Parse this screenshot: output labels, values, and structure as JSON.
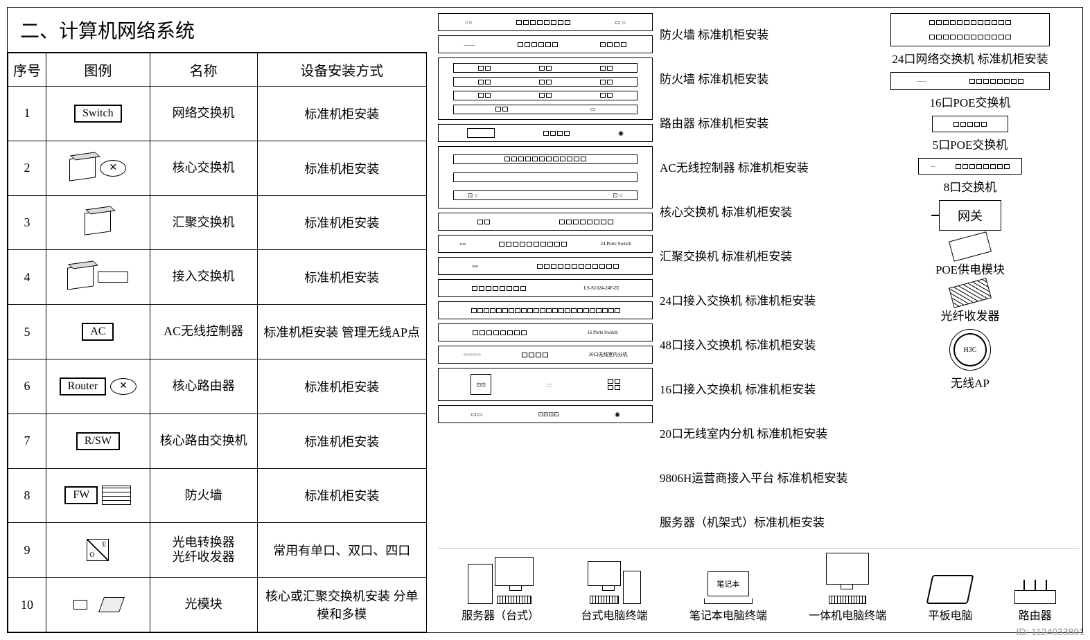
{
  "title": "二、计算机网络系统",
  "table": {
    "headers": {
      "seq": "序号",
      "icon": "图例",
      "name": "名称",
      "install": "设备安装方式"
    },
    "rows": [
      {
        "seq": "1",
        "symbol": "Switch",
        "symtype": "box",
        "name": "网络交换机",
        "install": "标准机柜安装"
      },
      {
        "seq": "2",
        "symbol": "",
        "symtype": "3d-round",
        "name": "核心交换机",
        "install": "标准机柜安装"
      },
      {
        "seq": "3",
        "symbol": "",
        "symtype": "3d",
        "name": "汇聚交换机",
        "install": "标准机柜安装"
      },
      {
        "seq": "4",
        "symbol": "",
        "symtype": "3d-flat",
        "name": "接入交换机",
        "install": "标准机柜安装"
      },
      {
        "seq": "5",
        "symbol": "AC",
        "symtype": "box",
        "name": "AC无线控制器",
        "install": "标准机柜安装 管理无线AP点"
      },
      {
        "seq": "6",
        "symbol": "Router",
        "symtype": "box-round",
        "name": "核心路由器",
        "install": "标准机柜安装"
      },
      {
        "seq": "7",
        "symbol": "R/SW",
        "symtype": "box",
        "name": "核心路由交换机",
        "install": "标准机柜安装"
      },
      {
        "seq": "8",
        "symbol": "FW",
        "symtype": "box-brick",
        "name": "防火墙",
        "install": "标准机柜安装"
      },
      {
        "seq": "9",
        "symbol": "",
        "symtype": "diag",
        "name": "光电转换器\n光纤收发器",
        "install": "常用有单口、双口、四口"
      },
      {
        "seq": "10",
        "symbol": "",
        "symtype": "module",
        "name": "光模块",
        "install": "核心或汇聚交换机安装 分单模和多模"
      }
    ]
  },
  "equipment": {
    "center_labels": [
      "防火墙 标准机柜安装",
      "防火墙 标准机柜安装",
      "路由器 标准机柜安装",
      "AC无线控制器 标准机柜安装",
      "核心交换机 标准机柜安装",
      "汇聚交换机 标准机柜安装",
      "24口接入交换机 标准机柜安装",
      "48口接入交换机 标准机柜安装",
      "16口接入交换机 标准机柜安装",
      "20口无线室内分机 标准机柜安装",
      "9806H运营商接入平台 标准机柜安装",
      "服务器（机架式）标准机柜安装"
    ],
    "right_items": [
      {
        "label": "24口网络交换机 标准机柜安装",
        "type": "rack24"
      },
      {
        "label": "16口POE交换机",
        "type": "rack16"
      },
      {
        "label": "5口POE交换机",
        "type": "small5"
      },
      {
        "label": "8口交换机",
        "type": "small8"
      },
      {
        "label": "网关",
        "type": "gateway"
      },
      {
        "label": "POE供电模块",
        "type": "poe"
      },
      {
        "label": "光纤收发器",
        "type": "fiber"
      },
      {
        "label": "无线AP",
        "type": "ap"
      }
    ]
  },
  "devices": [
    "服务器（台式）",
    "台式电脑终端",
    "笔记本电脑终端",
    "一体机电脑终端",
    "平板电脑",
    "路由器"
  ],
  "laptop_text": "笔记本",
  "ap_text": "H3C",
  "watermark": "ID: 1124033801",
  "colors": {
    "border": "#000000",
    "bg": "#ffffff",
    "watermark": "#999999"
  }
}
